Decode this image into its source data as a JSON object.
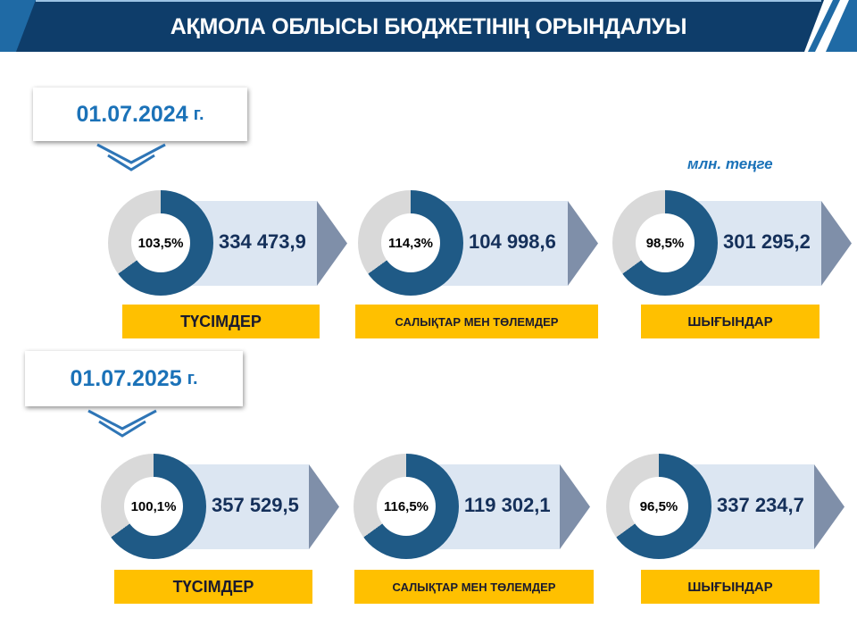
{
  "header": {
    "title": "АҚМОЛА ОБЛЫСЫ БЮДЖЕТІНІҢ ОРЫНДАЛУЫ"
  },
  "unit": "млн. теңге",
  "colors": {
    "header": "#0e3d6a",
    "accent": "#1f6aa5",
    "donut_dark": "#1f5a86",
    "donut_light": "#d9d9d9",
    "label_bg": "#ffc000",
    "bar_bg": "#dce6f2",
    "arrow": "#7f8fa9",
    "date_text": "#1b72b8"
  },
  "periods": [
    {
      "date": "01.07.2024",
      "suffix": "г.",
      "items": [
        {
          "percent": "103,5%",
          "amount": "334 473,9",
          "label": "ТҮСІМДЕР"
        },
        {
          "percent": "114,3%",
          "amount": "104 998,6",
          "label": "САЛЫҚТАР МЕН ТӨЛЕМДЕР"
        },
        {
          "percent": "98,5%",
          "amount": "301 295,2",
          "label": "ШЫҒЫНДАР"
        }
      ]
    },
    {
      "date": "01.07.2025",
      "suffix": "г.",
      "items": [
        {
          "percent": "100,1%",
          "amount": "357 529,5",
          "label": "ТҮСІМДЕР"
        },
        {
          "percent": "116,5%",
          "amount": "119 302,1",
          "label": "САЛЫҚТАР МЕН ТӨЛЕМДЕР"
        },
        {
          "percent": "96,5%",
          "amount": "337 234,7",
          "label": "ШЫҒЫНДАР"
        }
      ]
    }
  ]
}
